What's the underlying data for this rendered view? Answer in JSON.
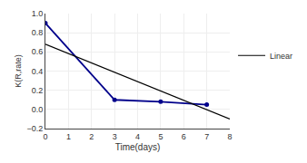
{
  "chart_data": {
    "type": "line",
    "xlabel": "Time(days)",
    "ylabel": "K(R,rate)",
    "xlim": [
      0,
      8
    ],
    "ylim": [
      -0.2,
      1.0
    ],
    "xticks": [
      0,
      1,
      2,
      3,
      4,
      5,
      6,
      7,
      8
    ],
    "yticks": [
      {
        "value": -0.2,
        "label": "−0.2"
      },
      {
        "value": 0,
        "label": "0.0"
      },
      0.2,
      0.4,
      0.6,
      0.8,
      {
        "value": 1.0,
        "label": "1.0"
      }
    ],
    "series": [
      {
        "x": [
          0,
          3,
          5,
          7
        ],
        "values": [
          0.9,
          0.1,
          0.08,
          0.05
        ],
        "color": "#00008B",
        "marker": "circle",
        "line_style": "solid"
      },
      {
        "name": "Linear",
        "x": [
          0,
          8
        ],
        "values": [
          0.68,
          -0.1
        ],
        "color": "#000000",
        "line_style": "solid"
      }
    ],
    "grid": true,
    "legend": "right"
  }
}
